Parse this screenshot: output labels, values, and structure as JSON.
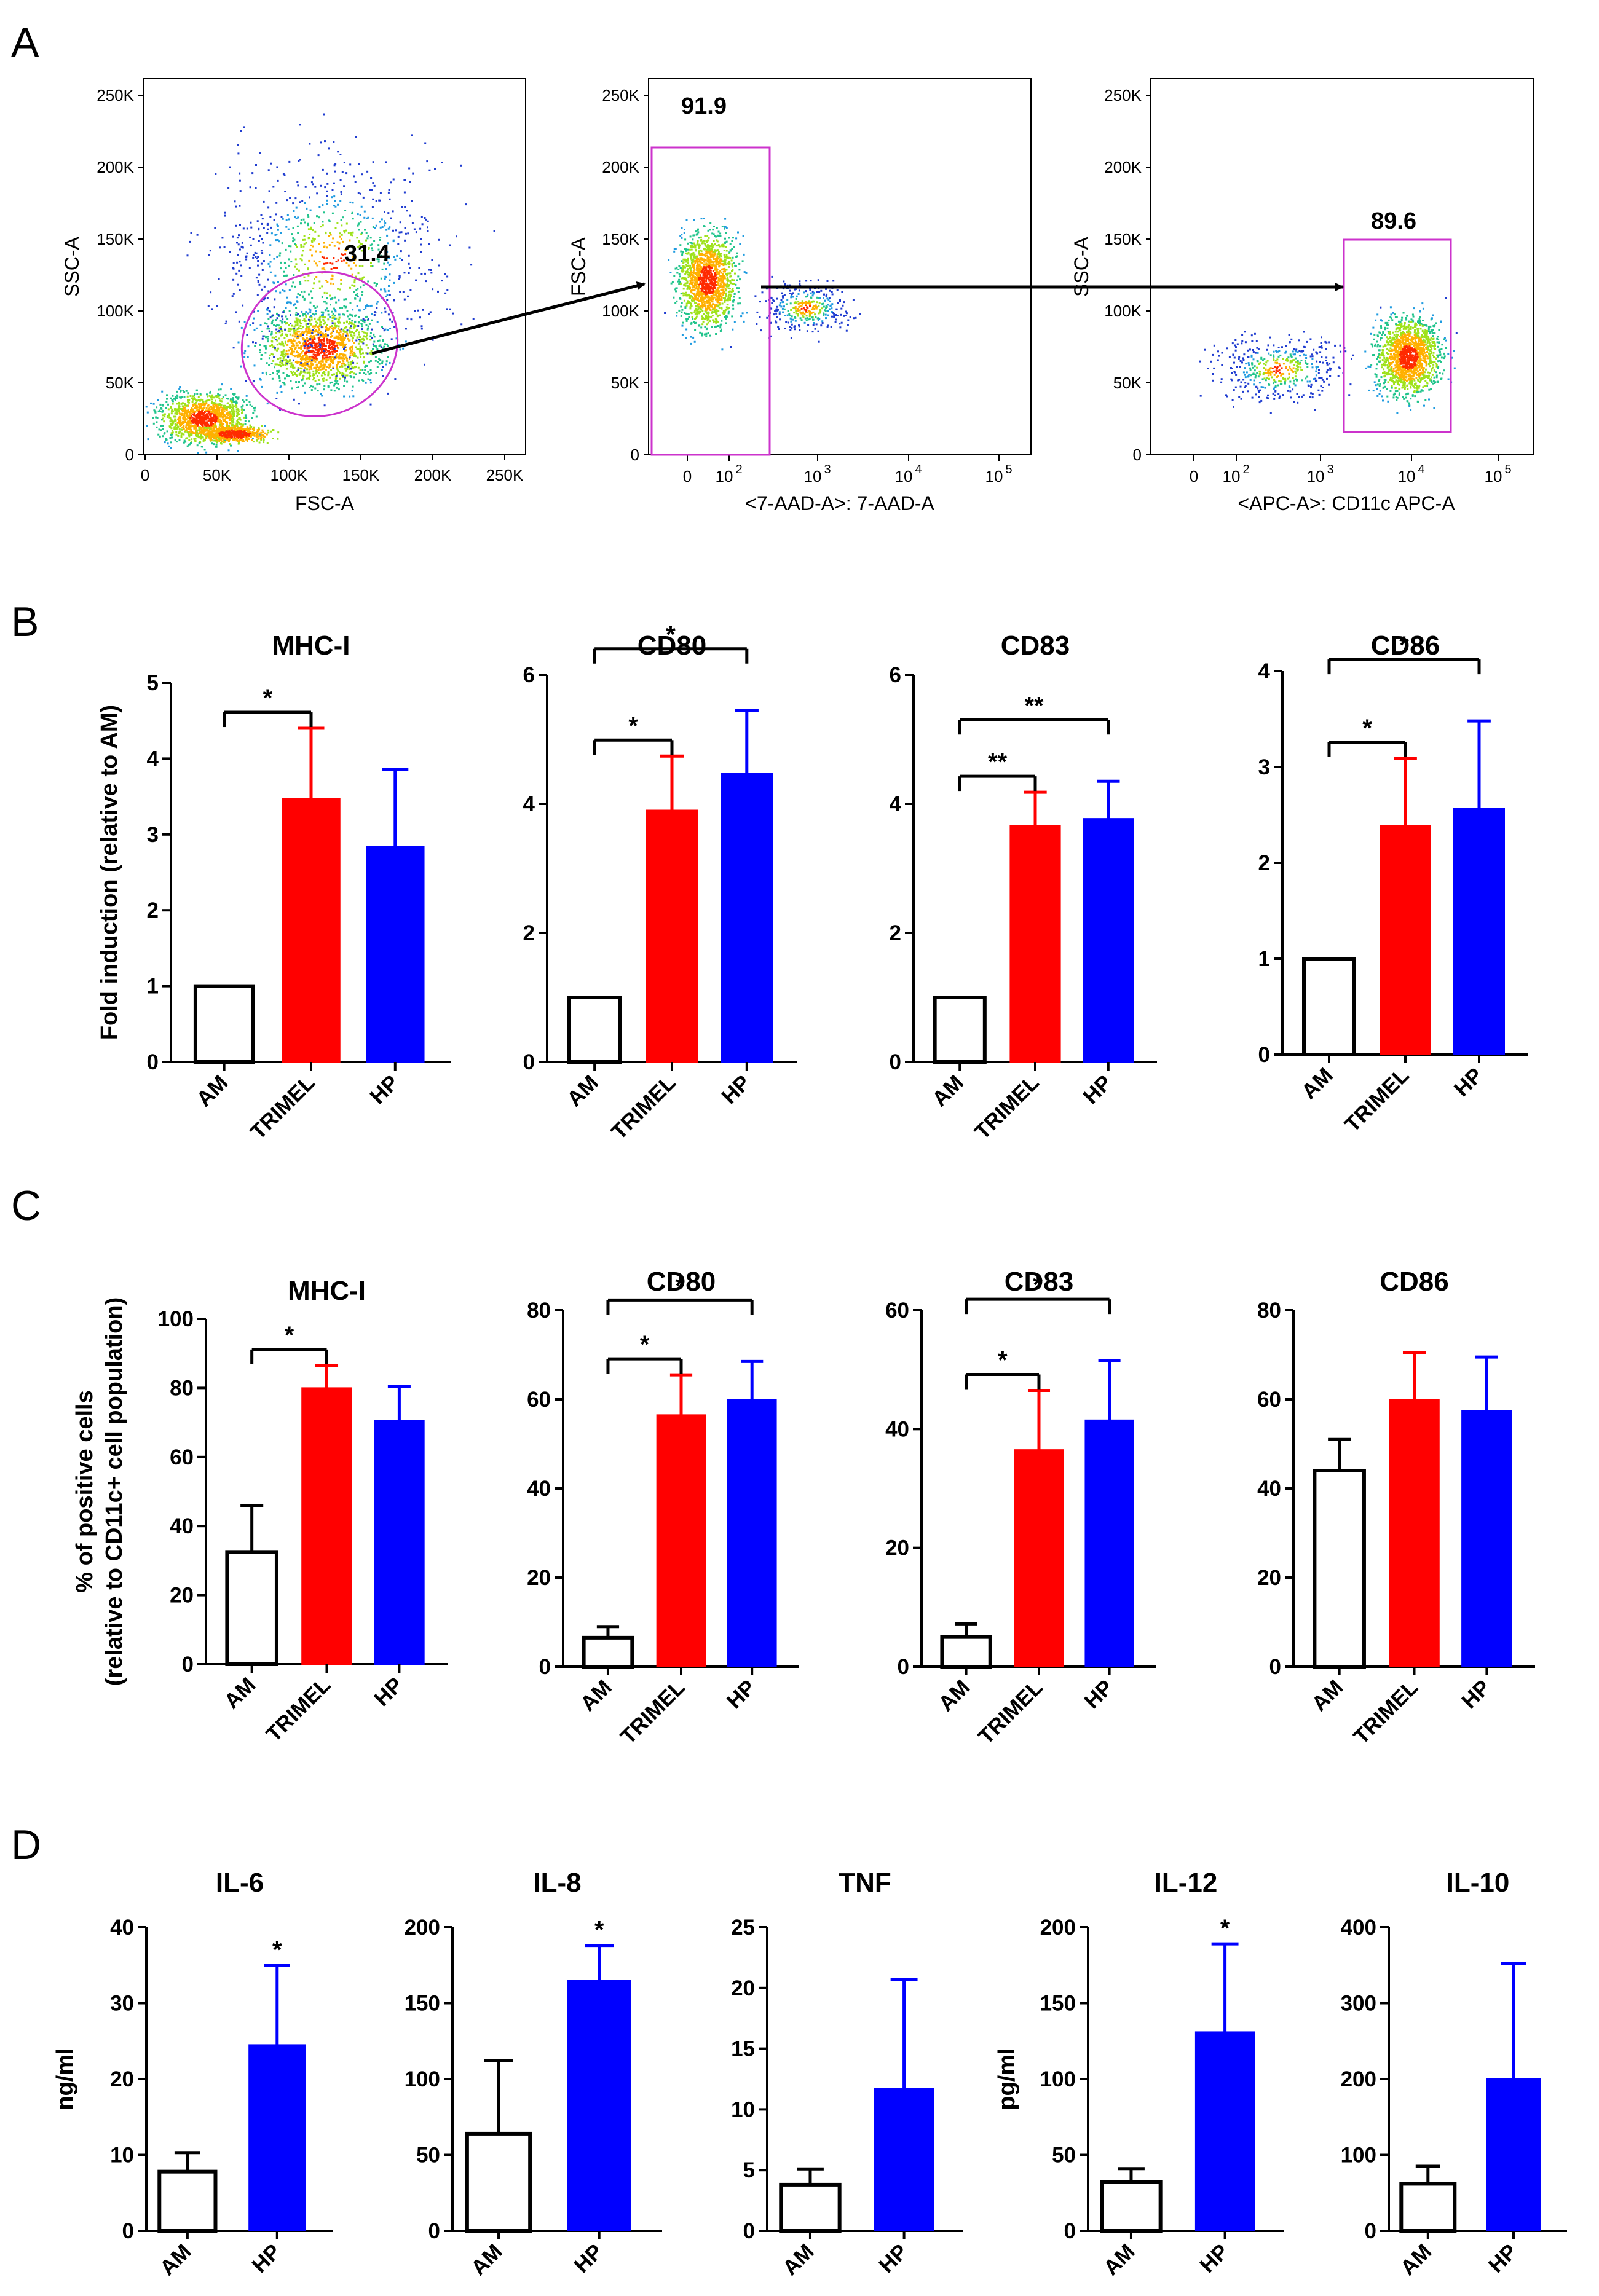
{
  "figure": {
    "panel_letters": [
      "A",
      "B",
      "C",
      "D"
    ]
  },
  "flow": {
    "plots": [
      {
        "id": "fsc-ssc",
        "x_label": "FSC-A",
        "y_label": "SSC-A",
        "x_ticks": [
          "0",
          "50K",
          "100K",
          "150K",
          "200K",
          "250K"
        ],
        "y_ticks": [
          "0",
          "50K",
          "100K",
          "150K",
          "200K",
          "250K"
        ],
        "gate_value": "31.4",
        "gate_shape": "ellipse"
      },
      {
        "id": "7aad-fsc",
        "x_label": "<7-AAD-A>: 7-AAD-A",
        "y_label": "FSC-A",
        "x_ticks": [
          "0",
          "10",
          "2",
          "10",
          "3",
          "10",
          "4",
          "10",
          "5"
        ],
        "y_ticks": [
          "0",
          "50K",
          "100K",
          "150K",
          "200K",
          "250K"
        ],
        "gate_value": "91.9",
        "gate_shape": "rectangle"
      },
      {
        "id": "cd11c-ssc",
        "x_label": "<APC-A>: CD11c APC-A",
        "y_label": "SSC-A",
        "x_ticks": [
          "0",
          "10",
          "2",
          "10",
          "3",
          "10",
          "4",
          "10",
          "5"
        ],
        "y_ticks": [
          "0",
          "50K",
          "100K",
          "150K",
          "200K",
          "250K"
        ],
        "gate_value": "89.6",
        "gate_shape": "rectangle"
      }
    ]
  },
  "chart_data": [
    {
      "panel": "B",
      "type": "bar",
      "title": "MHC-I",
      "ylabel": "Fold induction (relative to AM)",
      "categories": [
        "AM",
        "TRIMEL",
        "HP"
      ],
      "values": [
        1.0,
        3.47,
        2.84
      ],
      "errors": [
        0,
        0.93,
        1.02
      ],
      "colors": [
        "#ffffff",
        "#ff0000",
        "#0000ff"
      ],
      "ylim": [
        0,
        5
      ],
      "yticks": [
        "0",
        "1",
        "2",
        "3",
        "4",
        "5"
      ],
      "significance": [
        {
          "from": "AM",
          "to": "TRIMEL",
          "label": "*"
        }
      ]
    },
    {
      "panel": "B",
      "type": "bar",
      "title": "CD80",
      "ylabel": "",
      "categories": [
        "AM",
        "TRIMEL",
        "HP"
      ],
      "values": [
        1.0,
        3.9,
        4.47
      ],
      "errors": [
        0,
        0.84,
        0.98
      ],
      "colors": [
        "#ffffff",
        "#ff0000",
        "#0000ff"
      ],
      "ylim": [
        0,
        6
      ],
      "yticks": [
        "0",
        "2",
        "4",
        "6"
      ],
      "significance": [
        {
          "from": "AM",
          "to": "TRIMEL",
          "label": "*"
        },
        {
          "from": "AM",
          "to": "HP",
          "label": "*"
        }
      ]
    },
    {
      "panel": "B",
      "type": "bar",
      "title": "CD83",
      "ylabel": "",
      "categories": [
        "AM",
        "TRIMEL",
        "HP"
      ],
      "values": [
        1.0,
        3.66,
        3.77
      ],
      "errors": [
        0,
        0.52,
        0.58
      ],
      "colors": [
        "#ffffff",
        "#ff0000",
        "#0000ff"
      ],
      "ylim": [
        0,
        6
      ],
      "yticks": [
        "0",
        "2",
        "4",
        "6"
      ],
      "significance": [
        {
          "from": "AM",
          "to": "TRIMEL",
          "label": "**"
        },
        {
          "from": "AM",
          "to": "HP",
          "label": "**"
        }
      ]
    },
    {
      "panel": "B",
      "type": "bar",
      "title": "CD86",
      "ylabel": "",
      "categories": [
        "AM",
        "TRIMEL",
        "HP"
      ],
      "values": [
        1.0,
        2.39,
        2.57
      ],
      "errors": [
        0,
        0.7,
        0.91
      ],
      "colors": [
        "#ffffff",
        "#ff0000",
        "#0000ff"
      ],
      "ylim": [
        0,
        4
      ],
      "yticks": [
        "0",
        "1",
        "2",
        "3",
        "4"
      ],
      "significance": [
        {
          "from": "AM",
          "to": "TRIMEL",
          "label": "*"
        },
        {
          "from": "AM",
          "to": "HP",
          "label": "*"
        }
      ]
    },
    {
      "panel": "C",
      "type": "bar",
      "title": "MHC-I",
      "ylabel": "% of positive cells",
      "ylabel2": "(relative to CD11c+ cell population)",
      "categories": [
        "AM",
        "TRIMEL",
        "HP"
      ],
      "values": [
        32.5,
        80.0,
        70.5
      ],
      "errors": [
        13.5,
        6.5,
        10.0
      ],
      "colors": [
        "#ffffff",
        "#ff0000",
        "#0000ff"
      ],
      "ylim": [
        0,
        100
      ],
      "yticks": [
        "0",
        "20",
        "40",
        "60",
        "80",
        "100"
      ],
      "significance": [
        {
          "from": "AM",
          "to": "TRIMEL",
          "label": "*"
        }
      ]
    },
    {
      "panel": "C",
      "type": "bar",
      "title": "CD80",
      "ylabel": "",
      "categories": [
        "AM",
        "TRIMEL",
        "HP"
      ],
      "values": [
        6.5,
        56.5,
        60.0
      ],
      "errors": [
        2.5,
        9.0,
        8.5
      ],
      "colors": [
        "#ffffff",
        "#ff0000",
        "#0000ff"
      ],
      "ylim": [
        0,
        80
      ],
      "yticks": [
        "0",
        "20",
        "40",
        "60",
        "80"
      ],
      "significance": [
        {
          "from": "AM",
          "to": "TRIMEL",
          "label": "*"
        },
        {
          "from": "AM",
          "to": "HP",
          "label": "*"
        }
      ]
    },
    {
      "panel": "C",
      "type": "bar",
      "title": "CD83",
      "ylabel": "",
      "categories": [
        "AM",
        "TRIMEL",
        "HP"
      ],
      "values": [
        5.0,
        36.5,
        41.5
      ],
      "errors": [
        2.2,
        10.0,
        10.0
      ],
      "colors": [
        "#ffffff",
        "#ff0000",
        "#0000ff"
      ],
      "ylim": [
        0,
        60
      ],
      "yticks": [
        "0",
        "20",
        "40",
        "60"
      ],
      "significance": [
        {
          "from": "AM",
          "to": "TRIMEL",
          "label": "*"
        },
        {
          "from": "AM",
          "to": "HP",
          "label": "*"
        }
      ]
    },
    {
      "panel": "C",
      "type": "bar",
      "title": "CD86",
      "ylabel": "",
      "categories": [
        "AM",
        "TRIMEL",
        "HP"
      ],
      "values": [
        44.0,
        60.0,
        57.5
      ],
      "errors": [
        7.0,
        10.5,
        12.0
      ],
      "colors": [
        "#ffffff",
        "#ff0000",
        "#0000ff"
      ],
      "ylim": [
        0,
        80
      ],
      "yticks": [
        "0",
        "20",
        "40",
        "60",
        "80"
      ],
      "significance": []
    },
    {
      "panel": "D",
      "type": "bar",
      "title": "IL-6",
      "ylabel": "ng/ml",
      "categories": [
        "AM",
        "HP"
      ],
      "values": [
        7.8,
        24.5
      ],
      "errors": [
        2.5,
        10.5
      ],
      "colors": [
        "#ffffff",
        "#0000ff"
      ],
      "ylim": [
        0,
        40
      ],
      "yticks": [
        "0",
        "10",
        "20",
        "30",
        "40"
      ],
      "significance": [
        {
          "on": "HP",
          "label": "*"
        }
      ]
    },
    {
      "panel": "D",
      "type": "bar",
      "title": "IL-8",
      "ylabel": "",
      "categories": [
        "AM",
        "HP"
      ],
      "values": [
        64.0,
        165.0
      ],
      "errors": [
        48.0,
        23.0
      ],
      "colors": [
        "#ffffff",
        "#0000ff"
      ],
      "ylim": [
        0,
        200
      ],
      "yticks": [
        "0",
        "50",
        "100",
        "150",
        "200"
      ],
      "significance": [
        {
          "on": "HP",
          "label": "*"
        }
      ]
    },
    {
      "panel": "D",
      "type": "bar",
      "title": "TNF",
      "ylabel": "",
      "categories": [
        "AM",
        "HP"
      ],
      "values": [
        3.8,
        11.7
      ],
      "errors": [
        1.3,
        9.0
      ],
      "colors": [
        "#ffffff",
        "#0000ff"
      ],
      "ylim": [
        0,
        25
      ],
      "yticks": [
        "0",
        "5",
        "10",
        "15",
        "20",
        "25"
      ],
      "significance": []
    },
    {
      "panel": "D",
      "type": "bar",
      "title": "IL-12",
      "ylabel": "pg/ml",
      "categories": [
        "AM",
        "HP"
      ],
      "values": [
        32.0,
        131.0
      ],
      "errors": [
        9.0,
        58.0
      ],
      "colors": [
        "#ffffff",
        "#0000ff"
      ],
      "ylim": [
        0,
        200
      ],
      "yticks": [
        "0",
        "50",
        "100",
        "150",
        "200"
      ],
      "significance": [
        {
          "on": "HP",
          "label": "*"
        }
      ]
    },
    {
      "panel": "D",
      "type": "bar",
      "title": "IL-10",
      "ylabel": "",
      "categories": [
        "AM",
        "HP"
      ],
      "values": [
        62.0,
        200.0
      ],
      "errors": [
        23.0,
        152.0
      ],
      "colors": [
        "#ffffff",
        "#0000ff"
      ],
      "ylim": [
        0,
        400
      ],
      "yticks": [
        "0",
        "100",
        "200",
        "300",
        "400"
      ],
      "significance": []
    }
  ]
}
